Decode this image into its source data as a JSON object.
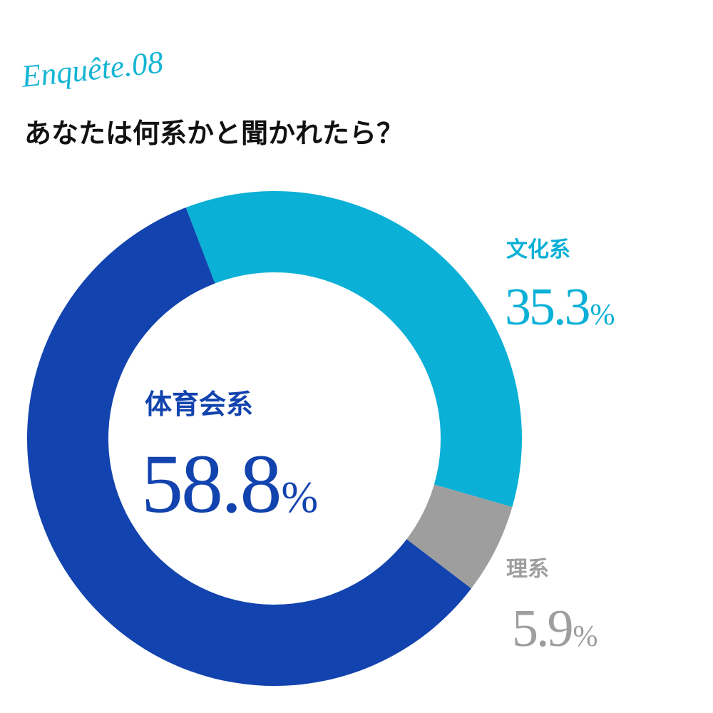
{
  "chart_data": {
    "type": "donut",
    "kicker": "Enquête.08",
    "title": "あなたは何系かと聞かれたら？",
    "categories": [
      "文化系",
      "理系",
      "体育会系"
    ],
    "values": [
      35.3,
      5.9,
      58.8
    ],
    "unit": "%",
    "colors": [
      "#0bb0d6",
      "#9e9e9e",
      "#1243ae"
    ]
  }
}
